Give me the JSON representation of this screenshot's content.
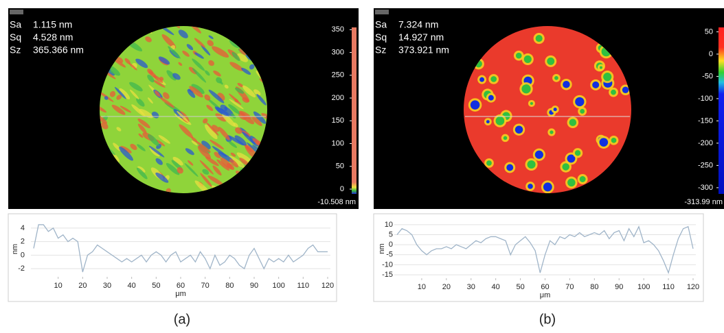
{
  "chart_data": [
    {
      "type": "line",
      "caption": "(a)",
      "stats": [
        {
          "name": "Sa",
          "text": "1.115  nm"
        },
        {
          "name": "Sq",
          "text": "4.528 nm"
        },
        {
          "name": "Sz",
          "text": "365.366 nm"
        }
      ],
      "colorbar": {
        "lim": [
          -10.508,
          355
        ],
        "ticks": [
          350,
          300,
          250,
          200,
          150,
          100,
          50,
          0
        ],
        "min_label": "-10.508 nm"
      },
      "xlabel": "μm",
      "ylabel": "nm",
      "color": "#9fb4c8",
      "x": [
        0,
        2,
        4,
        6,
        8,
        10,
        12,
        14,
        16,
        18,
        20,
        22,
        24,
        26,
        28,
        30,
        32,
        34,
        36,
        38,
        40,
        42,
        44,
        46,
        48,
        50,
        52,
        54,
        56,
        58,
        60,
        62,
        64,
        66,
        68,
        70,
        72,
        74,
        76,
        78,
        80,
        82,
        84,
        86,
        88,
        90,
        92,
        94,
        96,
        98,
        100,
        102,
        104,
        106,
        108,
        110,
        112,
        114,
        116,
        118,
        120
      ],
      "values": [
        1,
        4.5,
        4.5,
        3.5,
        4,
        2.5,
        3,
        2,
        2.5,
        2,
        -2.5,
        0,
        0.5,
        1.5,
        1,
        0.5,
        0,
        -0.5,
        -1,
        -0.5,
        -1,
        -0.5,
        0,
        -1,
        0,
        0.5,
        0,
        -1,
        0,
        0.5,
        -1,
        -0.5,
        0,
        -1,
        0.5,
        -0.5,
        -2,
        0,
        -1.5,
        -1,
        0,
        -0.5,
        -1.5,
        -2,
        0,
        1,
        -0.5,
        -2,
        -0.5,
        -1,
        -0.5,
        -1,
        0,
        -1,
        -0.5,
        0,
        1,
        1.5,
        0.5,
        0.5,
        0.5
      ],
      "xlim": [
        0,
        120
      ],
      "xticks": [
        10,
        20,
        30,
        40,
        50,
        60,
        70,
        80,
        90,
        100,
        110,
        120
      ],
      "ylim": [
        -3,
        4.8
      ],
      "yticks": [
        4,
        2,
        0,
        -2
      ],
      "grid": true
    },
    {
      "type": "line",
      "caption": "(b)",
      "stats": [
        {
          "name": "Sa",
          "text": "7.324 nm"
        },
        {
          "name": "Sq",
          "text": "14.927 nm"
        },
        {
          "name": "Sz",
          "text": "373.921 nm"
        }
      ],
      "colorbar": {
        "lim": [
          -313.99,
          59.93
        ],
        "ticks": [
          50,
          0,
          -50,
          -100,
          -150,
          -200,
          -250,
          -300
        ],
        "min_label": "-313.99 nm"
      },
      "xlabel": "μm",
      "ylabel": "nm",
      "color": "#9fb4c8",
      "x": [
        0,
        2,
        4,
        6,
        8,
        10,
        12,
        14,
        16,
        18,
        20,
        22,
        24,
        26,
        28,
        30,
        32,
        34,
        36,
        38,
        40,
        42,
        44,
        46,
        48,
        50,
        52,
        54,
        56,
        58,
        60,
        62,
        64,
        66,
        68,
        70,
        72,
        74,
        76,
        78,
        80,
        82,
        84,
        86,
        88,
        90,
        92,
        94,
        96,
        98,
        100,
        102,
        104,
        106,
        108,
        110,
        112,
        114,
        116,
        118,
        120
      ],
      "values": [
        5,
        8,
        7,
        5,
        0,
        -3,
        -5,
        -3,
        -2,
        -2,
        -1,
        -2,
        0,
        -1,
        -2,
        0,
        2,
        1,
        3,
        4,
        4,
        3,
        2,
        -5,
        0,
        2,
        4,
        1,
        -3,
        -14,
        -5,
        2,
        0,
        4,
        3,
        5,
        4,
        6,
        4,
        5,
        6,
        5,
        7,
        3,
        6,
        7,
        2,
        8,
        4,
        9,
        1,
        2,
        0,
        -3,
        -8,
        -14,
        -5,
        3,
        8,
        9,
        -2
      ],
      "xlim": [
        0,
        120
      ],
      "xticks": [
        10,
        20,
        30,
        40,
        50,
        60,
        70,
        80,
        90,
        100,
        110,
        120
      ],
      "ylim": [
        -16,
        12
      ],
      "yticks": [
        10,
        5,
        0,
        -5,
        -10,
        -15
      ],
      "grid": true
    }
  ]
}
